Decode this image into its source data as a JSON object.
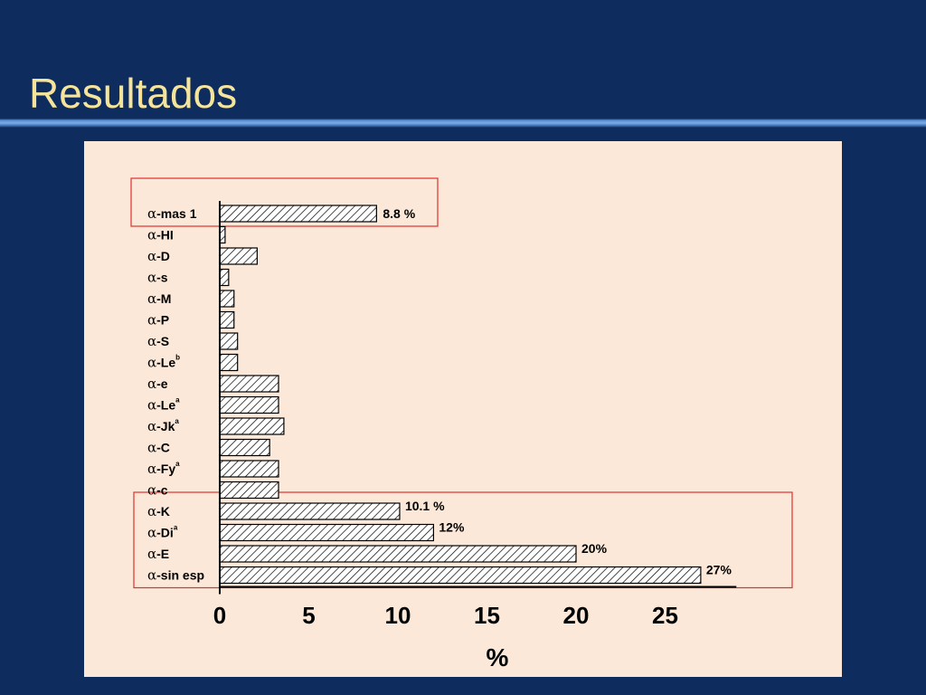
{
  "slide": {
    "title": "Resultados"
  },
  "colors": {
    "background": "#0e2d5e",
    "title": "#f5e49a",
    "panel": "#fbe8d8",
    "highlight": "#e03030"
  },
  "chart_data": {
    "type": "bar",
    "orientation": "horizontal",
    "bar_fill": "hatched",
    "xlabel": "%",
    "xlim": [
      0,
      29
    ],
    "xticks": [
      "0",
      "5",
      "10",
      "15",
      "20",
      "25"
    ],
    "categories": [
      {
        "prefix": "α",
        "name": "-mas 1",
        "sup": ""
      },
      {
        "prefix": "α",
        "name": "-HI",
        "sup": ""
      },
      {
        "prefix": "α",
        "name": "-D",
        "sup": ""
      },
      {
        "prefix": "α",
        "name": "-s",
        "sup": ""
      },
      {
        "prefix": "α",
        "name": "-M",
        "sup": ""
      },
      {
        "prefix": "α",
        "name": "-P",
        "sup": ""
      },
      {
        "prefix": "α",
        "name": "-S",
        "sup": ""
      },
      {
        "prefix": "α",
        "name": "-Le",
        "sup": "b"
      },
      {
        "prefix": "α",
        "name": "-e",
        "sup": ""
      },
      {
        "prefix": "α",
        "name": "-Le",
        "sup": "a"
      },
      {
        "prefix": "α",
        "name": "-Jk",
        "sup": "a"
      },
      {
        "prefix": "α",
        "name": "-C",
        "sup": ""
      },
      {
        "prefix": "α",
        "name": "-Fy",
        "sup": "a"
      },
      {
        "prefix": "α",
        "name": "-c",
        "sup": ""
      },
      {
        "prefix": "α",
        "name": "-K",
        "sup": ""
      },
      {
        "prefix": "α",
        "name": "-Di",
        "sup": "a"
      },
      {
        "prefix": "α",
        "name": "-E",
        "sup": ""
      },
      {
        "prefix": "α",
        "name": "-sin esp",
        "sup": ""
      }
    ],
    "values": [
      8.8,
      0.3,
      2.1,
      0.5,
      0.8,
      0.8,
      1.0,
      1.0,
      3.3,
      3.3,
      3.6,
      2.8,
      3.3,
      3.3,
      10.1,
      12,
      20,
      27
    ],
    "data_labels": [
      "8.8 %",
      "",
      "",
      "",
      "",
      "",
      "",
      "",
      "",
      "",
      "",
      "",
      "",
      "",
      "10.1 %",
      "12%",
      "20%",
      "27%"
    ],
    "highlight_groups": [
      {
        "from_category": 0,
        "to_category": 0
      },
      {
        "from_category": 14,
        "to_category": 17
      }
    ]
  }
}
